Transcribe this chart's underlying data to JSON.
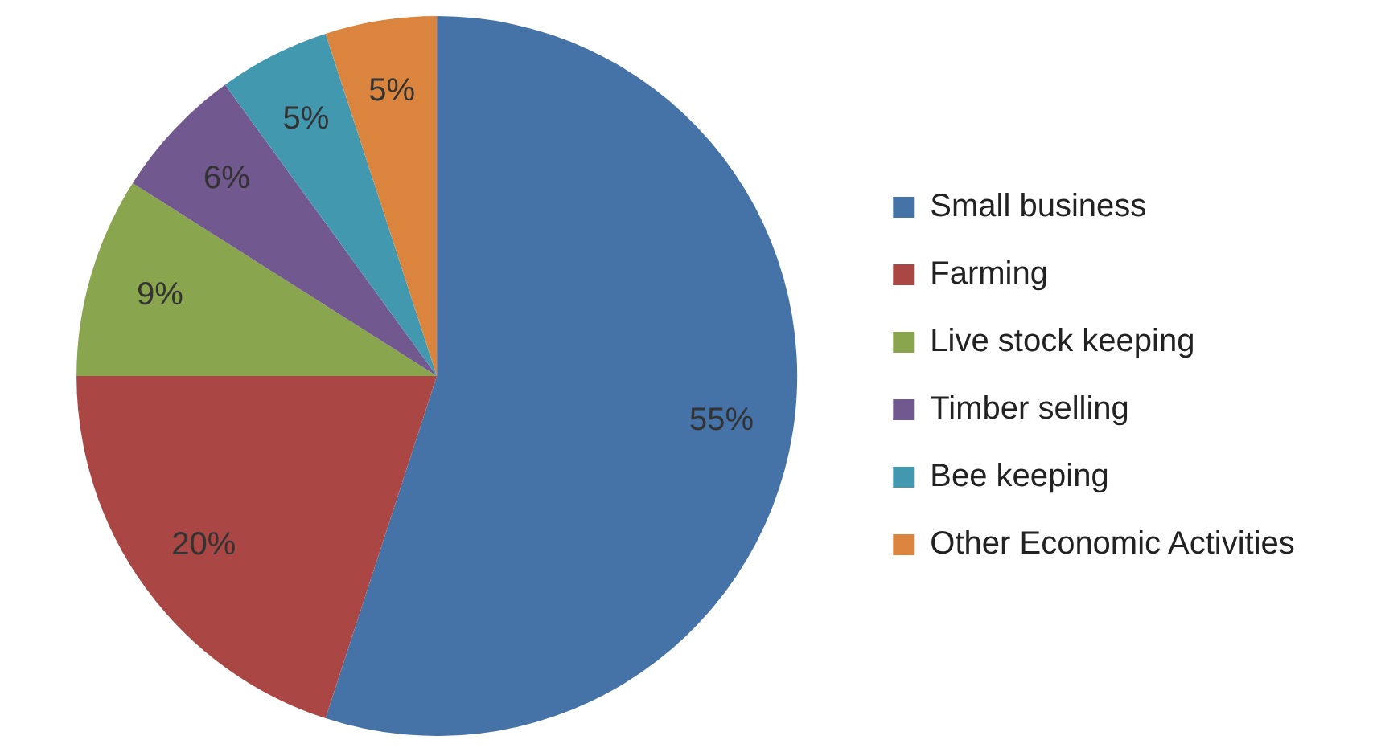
{
  "chart_data": {
    "type": "pie",
    "categories": [
      "Small business",
      "Farming",
      "Live stock keeping",
      "Timber selling",
      "Bee keeping",
      "Other Economic Activities"
    ],
    "values": [
      55,
      20,
      9,
      6,
      5,
      5
    ],
    "colors": [
      "#4572a7",
      "#aa4643",
      "#89a54e",
      "#71588f",
      "#4198af",
      "#db843d"
    ],
    "value_labels": [
      "55%",
      "20%",
      "9%",
      "6%",
      "5%",
      "5%"
    ],
    "legend": "right"
  }
}
